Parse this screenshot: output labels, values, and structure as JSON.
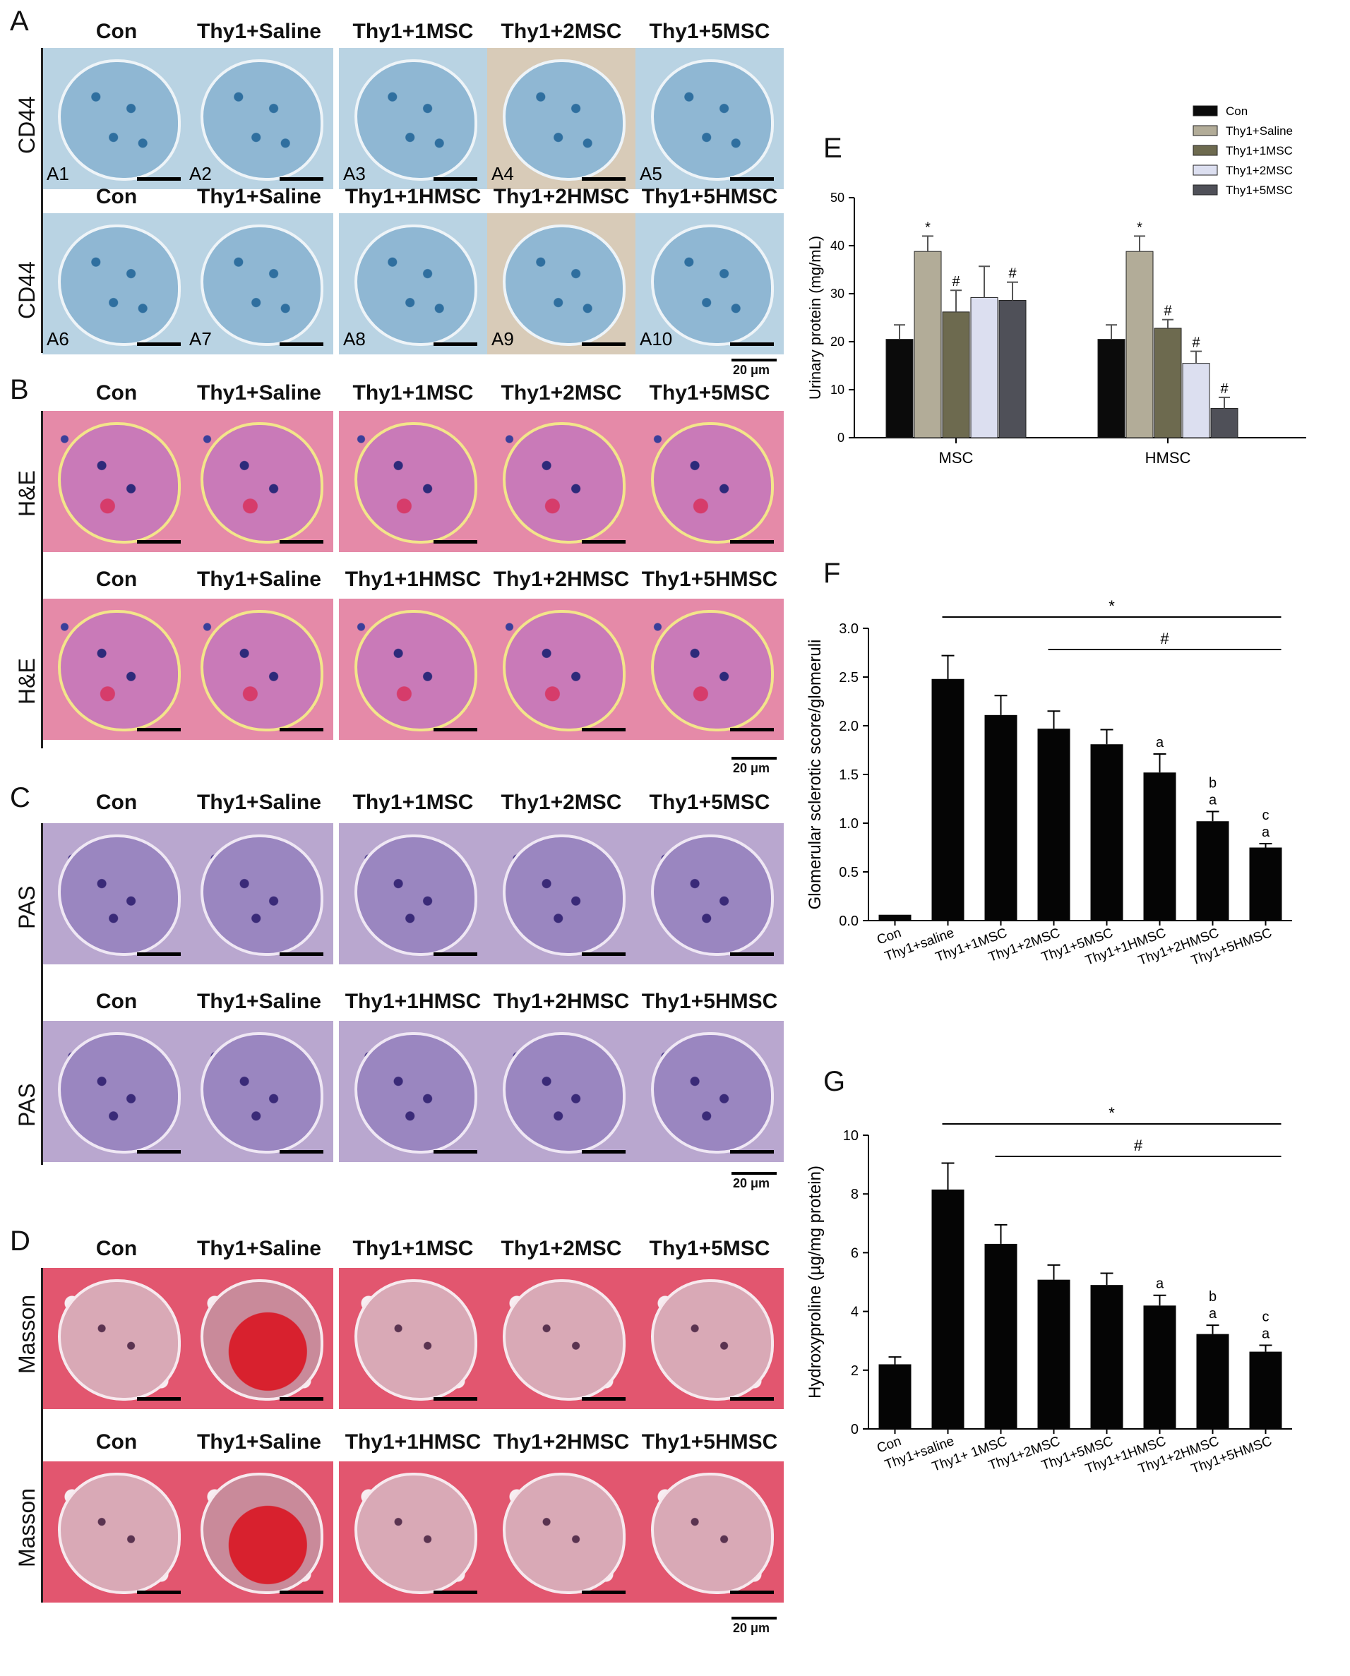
{
  "panel_letters": {
    "a": "A",
    "b": "B",
    "c": "C",
    "d": "D",
    "e": "E",
    "f": "F",
    "g": "G"
  },
  "row_labels": {
    "cd44": "CD44",
    "he": "H&E",
    "pas": "PAS",
    "masson": "Masson"
  },
  "msc_titles": [
    "Con",
    "Thy1+Saline",
    "Thy1+1MSC",
    "Thy1+2MSC",
    "Thy1+5MSC"
  ],
  "hmsc_titles": [
    "Con",
    "Thy1+Saline",
    "Thy1+1HMSC",
    "Thy1+2HMSC",
    "Thy1+5HMSC"
  ],
  "tile_labels_top": [
    "A1",
    "A2",
    "A3",
    "A4",
    "A5"
  ],
  "tile_labels_bottom": [
    "A6",
    "A7",
    "A8",
    "A9",
    "A10"
  ],
  "scale_label": "20 μm",
  "chart_data": [
    {
      "type": "bar",
      "id": "E",
      "groups": [
        "MSC",
        "HMSC"
      ],
      "ylabel": "Urinary protein (mg/mL)",
      "ylim": [
        0,
        50
      ],
      "yticks": [
        0,
        10,
        20,
        30,
        40,
        50
      ],
      "legend_position": "top-right",
      "series": [
        {
          "name": "Con",
          "color": "#0b0b0b",
          "values": [
            20.5,
            20.5
          ],
          "errors": [
            3,
            3
          ],
          "marks": [
            "",
            ""
          ]
        },
        {
          "name": "Thy1+Saline",
          "color": "#b2ac98",
          "values": [
            38.8,
            38.8
          ],
          "errors": [
            3.2,
            3.2
          ],
          "marks": [
            "*",
            "*"
          ]
        },
        {
          "name": "Thy1+1MSC",
          "color": "#6d6a4f",
          "values": [
            26.2,
            22.8
          ],
          "errors": [
            4.5,
            1.8
          ],
          "marks": [
            "#",
            "#"
          ]
        },
        {
          "name": "Thy1+2MSC",
          "color": "#dcdff0",
          "values": [
            29.2,
            15.5
          ],
          "errors": [
            6.5,
            2.5
          ],
          "marks": [
            "",
            "#"
          ]
        },
        {
          "name": "Thy1+5MSC",
          "color": "#4f5058",
          "values": [
            28.6,
            6.1
          ],
          "errors": [
            3.8,
            2.3
          ],
          "marks": [
            "#",
            "#"
          ]
        }
      ]
    },
    {
      "type": "bar",
      "id": "F",
      "categories": [
        "Con",
        "Thy1+saline",
        "Thy1+1MSC",
        "Thy1+2MSC",
        "Thy1+5MSC",
        "Thy1+1HMSC",
        "Thy1+2HMSC",
        "Thy1+5HMSC"
      ],
      "values": [
        0.06,
        2.48,
        2.11,
        1.97,
        1.81,
        1.52,
        1.02,
        0.75
      ],
      "errors": [
        0,
        0.24,
        0.2,
        0.18,
        0.15,
        0.19,
        0.1,
        0.04
      ],
      "marks": [
        [],
        [],
        [],
        [],
        [],
        [
          "a"
        ],
        [
          "b",
          "a"
        ],
        [
          "c",
          "a"
        ]
      ],
      "ylabel": "Glomerular sclerotic score/glomeruli",
      "ylim": [
        0,
        3.0
      ],
      "yticks": [
        "0.0",
        "0.5",
        "1.0",
        "1.5",
        "2.0",
        "2.5",
        "3.0"
      ],
      "significance": [
        {
          "symbol": "*",
          "from": 1,
          "to": 7
        },
        {
          "symbol": "#",
          "from": 3,
          "to": 7
        }
      ]
    },
    {
      "type": "bar",
      "id": "G",
      "categories": [
        "Con",
        "Thy1+saline",
        "Thy1+ 1MSC",
        "Thy1+2MSC",
        "Thy1+5MSC",
        "Thy1+1HMSC",
        "Thy1+2HMSC",
        "Thy1+5HMSC"
      ],
      "values": [
        2.2,
        8.15,
        6.3,
        5.08,
        4.9,
        4.2,
        3.23,
        2.63
      ],
      "errors": [
        0.25,
        0.9,
        0.65,
        0.5,
        0.4,
        0.35,
        0.3,
        0.22
      ],
      "marks": [
        [],
        [],
        [],
        [],
        [],
        [
          "a"
        ],
        [
          "b",
          "a"
        ],
        [
          "c",
          "a"
        ]
      ],
      "ylabel": "Hydroxyproline (µg/mg protein)",
      "ylim": [
        0,
        10
      ],
      "yticks": [
        "0",
        "2",
        "4",
        "6",
        "8",
        "10"
      ],
      "significance": [
        {
          "symbol": "*",
          "from": 1,
          "to": 7
        },
        {
          "symbol": "#",
          "from": 2,
          "to": 7
        }
      ]
    }
  ]
}
